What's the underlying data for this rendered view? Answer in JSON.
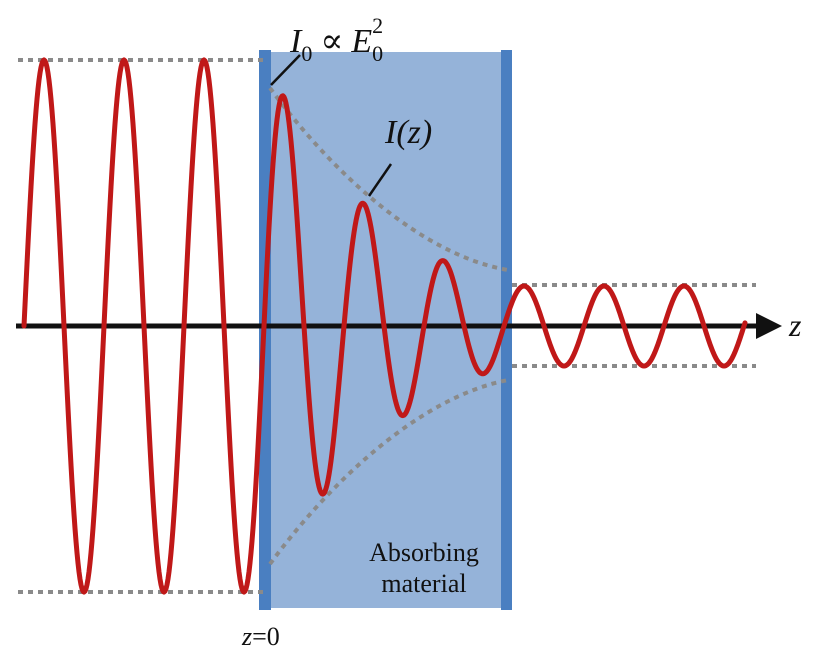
{
  "labels": {
    "i0_symbol": "I",
    "i0_subscript": "0",
    "proportional": "∝",
    "e_symbol": "E",
    "e_subscript": "0",
    "e_superscript": "2",
    "iz": "I(z)",
    "axis": "z",
    "origin_z": "z",
    "origin_eq": "=0",
    "material_line1": "Absorbing",
    "material_line2": "material"
  },
  "colors": {
    "wave": "#c01818",
    "axis": "#111111",
    "envelope": "#8a8a8a",
    "material_fill": "#95b3d9",
    "material_edge": "#4a7fc1"
  }
}
